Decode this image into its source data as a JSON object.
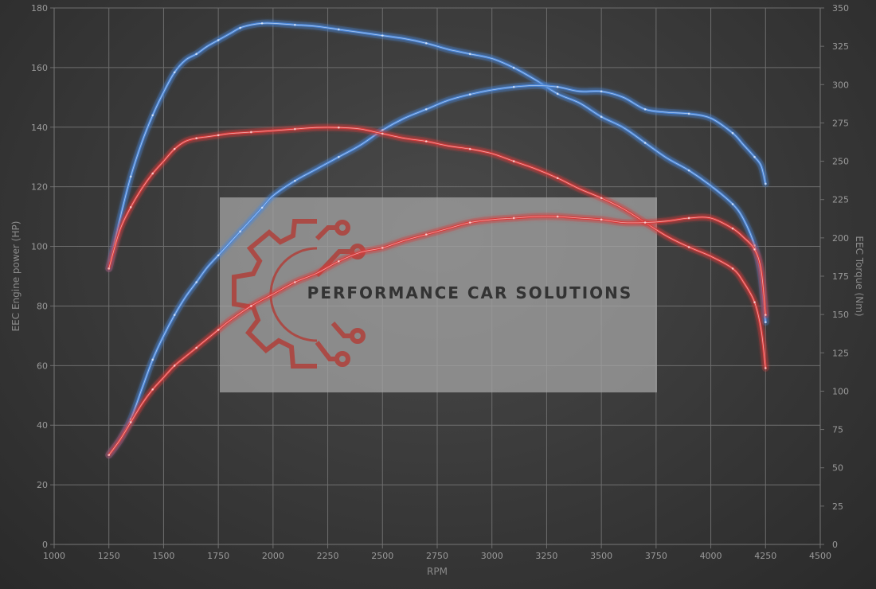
{
  "chart_data": {
    "type": "line",
    "xlabel": "RPM",
    "ylabel_left": "EEC Engine power (HP)",
    "ylabel_right": "EEC Torque (Nm)",
    "xlim": [
      1000,
      4500
    ],
    "ylim_left": [
      0,
      180
    ],
    "ylim_right": [
      0,
      350
    ],
    "x_ticks": [
      1000,
      1250,
      1500,
      1750,
      2000,
      2250,
      2500,
      2750,
      3000,
      3250,
      3500,
      3750,
      4000,
      4250,
      4500
    ],
    "y_left_ticks": [
      0,
      20,
      40,
      60,
      80,
      100,
      120,
      140,
      160,
      180
    ],
    "y_right_ticks": [
      0,
      25,
      50,
      75,
      100,
      125,
      150,
      175,
      200,
      225,
      250,
      275,
      300,
      325,
      350
    ],
    "grid": true,
    "colors": {
      "blue": "#4a86d9",
      "red": "#d93a3a",
      "grid": "#6e6e6e",
      "background": "#3c3c3c"
    },
    "series": [
      {
        "axis": "right",
        "color": "#4a86d9",
        "points": [
          [
            1250,
            180
          ],
          [
            1300,
            212
          ],
          [
            1350,
            240
          ],
          [
            1400,
            262
          ],
          [
            1450,
            280
          ],
          [
            1500,
            295
          ],
          [
            1550,
            308
          ],
          [
            1600,
            316
          ],
          [
            1650,
            320
          ],
          [
            1700,
            325
          ],
          [
            1750,
            329
          ],
          [
            1800,
            333
          ],
          [
            1850,
            337
          ],
          [
            1900,
            339
          ],
          [
            1950,
            340
          ],
          [
            2000,
            340
          ],
          [
            2100,
            339
          ],
          [
            2200,
            338
          ],
          [
            2300,
            336
          ],
          [
            2400,
            334
          ],
          [
            2500,
            332
          ],
          [
            2600,
            330
          ],
          [
            2700,
            327
          ],
          [
            2800,
            323
          ],
          [
            2900,
            320
          ],
          [
            3000,
            317
          ],
          [
            3100,
            311
          ],
          [
            3200,
            303
          ],
          [
            3300,
            294
          ],
          [
            3400,
            288
          ],
          [
            3500,
            279
          ],
          [
            3600,
            272
          ],
          [
            3700,
            262
          ],
          [
            3800,
            252
          ],
          [
            3900,
            244
          ],
          [
            4000,
            234
          ],
          [
            4100,
            222
          ],
          [
            4150,
            212
          ],
          [
            4200,
            195
          ],
          [
            4230,
            175
          ],
          [
            4250,
            145
          ]
        ]
      },
      {
        "axis": "left",
        "color": "#4a86d9",
        "points": [
          [
            1250,
            30
          ],
          [
            1300,
            35
          ],
          [
            1350,
            42
          ],
          [
            1400,
            52
          ],
          [
            1450,
            62
          ],
          [
            1500,
            70
          ],
          [
            1550,
            77
          ],
          [
            1600,
            83
          ],
          [
            1650,
            88
          ],
          [
            1700,
            93
          ],
          [
            1750,
            97
          ],
          [
            1800,
            101
          ],
          [
            1850,
            105
          ],
          [
            1900,
            109
          ],
          [
            1950,
            113
          ],
          [
            2000,
            117
          ],
          [
            2100,
            122
          ],
          [
            2200,
            126
          ],
          [
            2300,
            130
          ],
          [
            2400,
            134
          ],
          [
            2500,
            139
          ],
          [
            2600,
            143
          ],
          [
            2700,
            146
          ],
          [
            2800,
            149
          ],
          [
            2900,
            151
          ],
          [
            3000,
            152.5
          ],
          [
            3100,
            153.5
          ],
          [
            3200,
            154
          ],
          [
            3300,
            153.5
          ],
          [
            3400,
            152
          ],
          [
            3500,
            152
          ],
          [
            3600,
            150
          ],
          [
            3700,
            146
          ],
          [
            3800,
            145
          ],
          [
            3900,
            144.5
          ],
          [
            4000,
            143
          ],
          [
            4100,
            138
          ],
          [
            4150,
            134
          ],
          [
            4200,
            130
          ],
          [
            4230,
            127
          ],
          [
            4250,
            121
          ]
        ]
      },
      {
        "axis": "right",
        "color": "#d93a3a",
        "points": [
          [
            1250,
            180
          ],
          [
            1300,
            205
          ],
          [
            1350,
            220
          ],
          [
            1400,
            232
          ],
          [
            1450,
            242
          ],
          [
            1500,
            250
          ],
          [
            1550,
            258
          ],
          [
            1600,
            263
          ],
          [
            1650,
            265
          ],
          [
            1700,
            266
          ],
          [
            1750,
            267
          ],
          [
            1800,
            268
          ],
          [
            1900,
            269
          ],
          [
            2000,
            270
          ],
          [
            2100,
            271
          ],
          [
            2200,
            272
          ],
          [
            2300,
            272
          ],
          [
            2400,
            271
          ],
          [
            2500,
            268
          ],
          [
            2600,
            265
          ],
          [
            2700,
            263
          ],
          [
            2800,
            260
          ],
          [
            2900,
            258
          ],
          [
            3000,
            255
          ],
          [
            3100,
            250
          ],
          [
            3200,
            245
          ],
          [
            3300,
            239
          ],
          [
            3400,
            232
          ],
          [
            3500,
            226
          ],
          [
            3600,
            219
          ],
          [
            3700,
            210
          ],
          [
            3800,
            201
          ],
          [
            3900,
            194
          ],
          [
            4000,
            188
          ],
          [
            4100,
            180
          ],
          [
            4150,
            171
          ],
          [
            4200,
            158
          ],
          [
            4230,
            140
          ],
          [
            4250,
            115
          ]
        ]
      },
      {
        "axis": "left",
        "color": "#d93a3a",
        "points": [
          [
            1250,
            30
          ],
          [
            1300,
            35
          ],
          [
            1350,
            41
          ],
          [
            1400,
            47
          ],
          [
            1450,
            52
          ],
          [
            1500,
            56
          ],
          [
            1550,
            60
          ],
          [
            1600,
            63
          ],
          [
            1650,
            66
          ],
          [
            1700,
            69
          ],
          [
            1750,
            72
          ],
          [
            1800,
            75
          ],
          [
            1900,
            80
          ],
          [
            2000,
            84
          ],
          [
            2100,
            88
          ],
          [
            2200,
            91
          ],
          [
            2300,
            95
          ],
          [
            2400,
            98
          ],
          [
            2500,
            99.5
          ],
          [
            2600,
            102
          ],
          [
            2700,
            104
          ],
          [
            2800,
            106
          ],
          [
            2900,
            108
          ],
          [
            3000,
            109
          ],
          [
            3100,
            109.5
          ],
          [
            3200,
            110
          ],
          [
            3300,
            110
          ],
          [
            3400,
            109.5
          ],
          [
            3500,
            109
          ],
          [
            3600,
            108
          ],
          [
            3700,
            108
          ],
          [
            3800,
            108.5
          ],
          [
            3900,
            109.5
          ],
          [
            4000,
            109.5
          ],
          [
            4100,
            106
          ],
          [
            4150,
            103
          ],
          [
            4200,
            99
          ],
          [
            4230,
            92
          ],
          [
            4250,
            77
          ]
        ]
      }
    ]
  },
  "watermark": {
    "text": "PERFORMANCE CAR SOLUTIONS",
    "logo_color": "#b0403a",
    "text_color": "#333333",
    "panel_color": "#a8a8a8"
  }
}
